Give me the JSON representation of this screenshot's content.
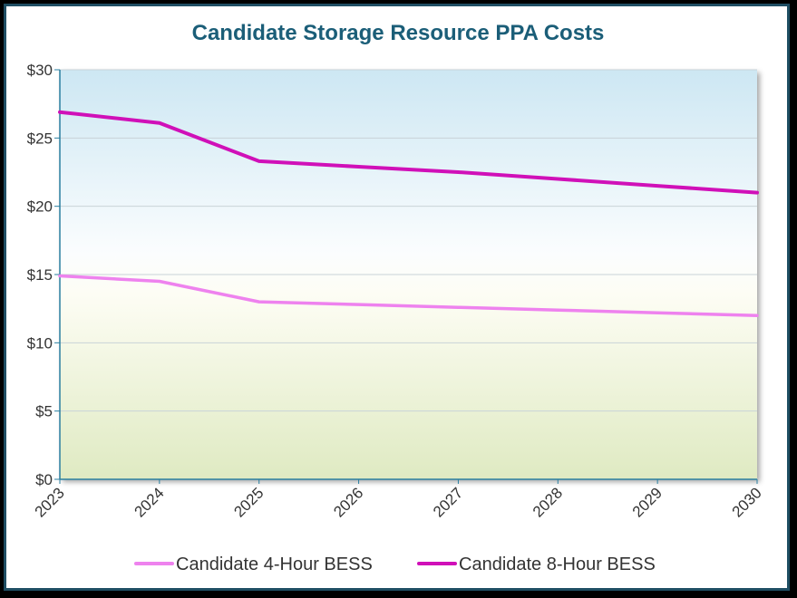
{
  "chart_data": {
    "type": "line",
    "title": "Candidate Storage Resource PPA Costs",
    "xlabel": "",
    "ylabel": "",
    "x": [
      "2023",
      "2024",
      "2025",
      "2026",
      "2027",
      "2028",
      "2029",
      "2030"
    ],
    "y_ticks": [
      "$0",
      "$5",
      "$10",
      "$15",
      "$20",
      "$25",
      "$30"
    ],
    "ylim": [
      0,
      30
    ],
    "grid": true,
    "legend_position": "bottom",
    "series": [
      {
        "name": "Candidate 4-Hour BESS",
        "color": "#ee82ee",
        "values": [
          14.9,
          14.5,
          13.0,
          12.8,
          12.6,
          12.4,
          12.2,
          12.0
        ]
      },
      {
        "name": "Candidate 8-Hour BESS",
        "color": "#d010b8",
        "values": [
          26.9,
          26.1,
          23.3,
          22.9,
          22.5,
          22.0,
          21.5,
          21.0
        ]
      }
    ]
  }
}
